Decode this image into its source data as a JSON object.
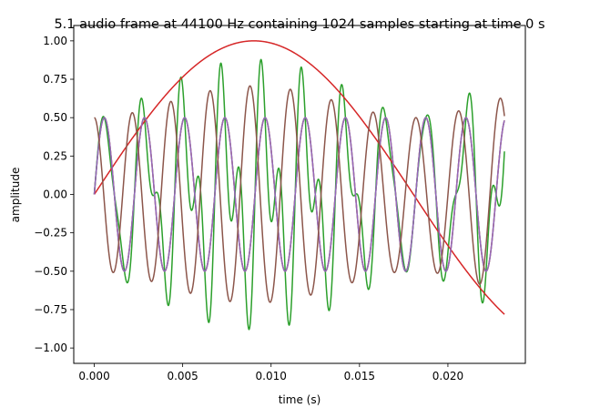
{
  "chart_data": {
    "type": "line",
    "title": "5.1 audio frame at 44100 Hz containing 1024 samples starting at time 0 s",
    "xlabel": "time (s)",
    "ylabel": "amplitude",
    "xlim": [
      -0.00116,
      0.02438
    ],
    "ylim": [
      -1.1,
      1.1
    ],
    "xticks": [
      0.0,
      0.005,
      0.01,
      0.015,
      0.02
    ],
    "xtick_labels": [
      "0.000",
      "0.005",
      "0.010",
      "0.015",
      "0.020"
    ],
    "yticks": [
      1.0,
      0.75,
      0.5,
      0.25,
      0.0,
      -0.25,
      -0.5,
      -0.75,
      -1.0
    ],
    "ytick_labels": [
      "1.00",
      "0.75",
      "0.50",
      "0.25",
      "0.00",
      "−0.25",
      "−0.50",
      "−0.75",
      "−1.00"
    ],
    "grid": false,
    "sample_rate": 44100,
    "sample_count": 1024,
    "start_time": 0,
    "series": [
      {
        "color": "#1f77b4",
        "values": "0.5*sin(2*pi*440*t)"
      },
      {
        "color": "#ff7f0e",
        "values": "0.5*sin(2*pi*440*t)"
      },
      {
        "color": "#2ca02c",
        "values": "0.5*sin(2*pi*440*t) + 0.5*sin(2*pi*880*t)*sin(2*pi*27.7*t)"
      },
      {
        "color": "#d62728",
        "values": "sin(2*pi*27.7*t)"
      },
      {
        "color": "#9467bd",
        "values": "0.5*sin(2*pi*440*t)"
      },
      {
        "color": "#8c564b",
        "values": "0.5*cos(2*pi*440*t) - 0.5*sin(2*pi*440*t)*sin(2*pi*27.7*t)"
      }
    ]
  }
}
